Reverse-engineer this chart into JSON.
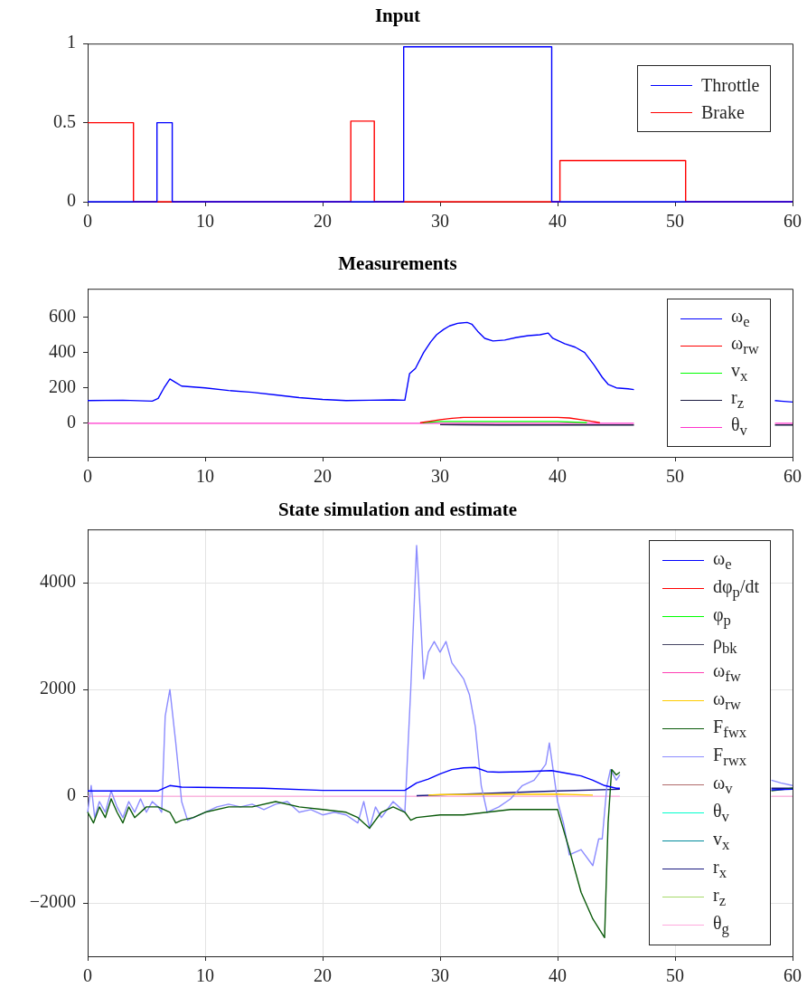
{
  "chart_data": [
    {
      "type": "step",
      "title": "Input",
      "xlim": [
        0,
        60
      ],
      "xticks": [
        0,
        10,
        20,
        30,
        40,
        50,
        60
      ],
      "ylim": [
        0,
        1
      ],
      "yticks": [
        0,
        0.5,
        1
      ],
      "legend": "top right",
      "series": [
        {
          "name": "Throttle",
          "color": "#0000ff",
          "x": [
            0,
            5.9,
            7.2,
            26.9,
            39.5,
            60
          ],
          "values": [
            0,
            0.5,
            0,
            0.98,
            0,
            0
          ]
        },
        {
          "name": "Brake",
          "color": "#ff0000",
          "x": [
            0,
            3.9,
            22.4,
            24.4,
            40.2,
            50.9,
            60
          ],
          "values": [
            0.5,
            0,
            0.51,
            0,
            0.26,
            0,
            0
          ]
        }
      ]
    },
    {
      "type": "line",
      "title": "Measurements",
      "xlim": [
        0,
        60
      ],
      "xticks": [
        0,
        10,
        20,
        30,
        40,
        50,
        60
      ],
      "ylim": [
        -190,
        760
      ],
      "yticks": [
        0,
        200,
        400,
        600
      ],
      "legend": "right",
      "series": [
        {
          "name": "ω$_{e}$",
          "color": "#0000ff",
          "x": [
            0,
            3,
            5.5,
            6,
            6.5,
            7,
            7.5,
            8,
            9,
            10,
            12,
            14,
            16,
            18,
            20,
            22,
            24,
            26,
            27,
            27.4,
            27.9,
            28.6,
            29.2,
            29.7,
            30.3,
            30.8,
            31.5,
            32.3,
            32.7,
            33.2,
            33.8,
            34.5,
            35.5,
            36.5,
            37.5,
            38.5,
            39.2,
            39.6,
            40.6,
            41.5,
            42.3,
            43.1,
            43.8,
            44.3,
            45,
            46,
            46.5,
            47,
            58.5,
            59,
            60
          ],
          "values": [
            128,
            130,
            125,
            140,
            200,
            250,
            230,
            210,
            205,
            200,
            185,
            175,
            160,
            145,
            135,
            128,
            130,
            132,
            130,
            280,
            310,
            400,
            460,
            500,
            530,
            550,
            565,
            570,
            560,
            520,
            480,
            465,
            470,
            485,
            495,
            500,
            510,
            480,
            450,
            430,
            400,
            330,
            260,
            220,
            200,
            195,
            190,
            null,
            128,
            125,
            120
          ]
        },
        {
          "name": "ω$_{rw}$",
          "color": "#ff0000",
          "x": [
            28.3,
            29,
            30,
            31,
            32,
            40,
            41,
            42,
            43,
            43.6
          ],
          "values": [
            3,
            10,
            20,
            28,
            33,
            33,
            30,
            20,
            10,
            3
          ]
        },
        {
          "name": "v$_{x}$",
          "color": "#00ff00",
          "x": [
            28.5,
            30,
            40,
            42.5
          ],
          "values": [
            3,
            10,
            10,
            3
          ]
        },
        {
          "name": "r$_{z}$",
          "color": "#1a1a40",
          "x": [
            30,
            35,
            44,
            46.5,
            47,
            58.5,
            60
          ],
          "values": [
            -8,
            -10,
            -10,
            -10,
            null,
            -10,
            -10
          ]
        },
        {
          "name": "θ$_{v}$",
          "color": "#ff33cc",
          "x": [
            0,
            46.5,
            47,
            58.5,
            60
          ],
          "values": [
            0,
            0,
            null,
            0,
            0
          ]
        }
      ]
    },
    {
      "type": "line",
      "title": "State simulation and estimate",
      "xlim": [
        0,
        60
      ],
      "xticks": [
        0,
        10,
        20,
        30,
        40,
        50,
        60
      ],
      "ylim": [
        -3000,
        5000
      ],
      "yticks": [
        {
          "value": -2000,
          "label": "−2000"
        },
        0,
        2000,
        4000
      ],
      "grid": true,
      "legend": "right",
      "series": [
        {
          "name": "ω$_{e}$",
          "color": "#0000ff",
          "x": [
            0,
            6,
            6.5,
            7,
            8,
            15,
            20,
            27,
            28,
            29,
            30,
            31,
            32,
            33,
            34,
            35,
            37,
            39.5,
            41,
            42,
            43,
            44,
            45,
            45.3,
            45.5,
            58.2,
            60
          ],
          "values": [
            100,
            100,
            150,
            200,
            170,
            150,
            110,
            110,
            250,
            320,
            420,
            500,
            530,
            540,
            460,
            450,
            460,
            480,
            420,
            380,
            300,
            200,
            150,
            150,
            null,
            120,
            130
          ]
        },
        {
          "name": "dφ$_{p}$/dt",
          "color": "#ff0000"
        },
        {
          "name": "φ$_{p}$",
          "color": "#00ff00"
        },
        {
          "name": "ρ$_{bk}$",
          "color": "#464664"
        },
        {
          "name": "ω$_{fw}$",
          "color": "#ff3fb4"
        },
        {
          "name": "ω$_{rw}$",
          "color": "#ffcc00",
          "x": [
            29,
            30,
            40,
            43
          ],
          "values": [
            20,
            30,
            40,
            20
          ]
        },
        {
          "name": "F$_{fwx}$",
          "color": "#0a5a0a",
          "x": [
            0,
            0.5,
            1,
            1.5,
            2,
            2.5,
            3,
            3.5,
            4,
            5,
            6,
            7,
            7.5,
            8,
            9,
            10,
            12,
            14,
            16,
            18,
            20,
            22,
            23,
            24,
            25,
            26,
            27,
            27.5,
            28,
            30,
            32,
            34,
            36,
            38,
            40,
            41,
            42,
            43,
            44,
            44.3,
            44.6,
            45,
            45.3,
            45.5,
            58.2,
            60
          ],
          "values": [
            -300,
            -500,
            -200,
            -400,
            -50,
            -300,
            -500,
            -200,
            -400,
            -200,
            -200,
            -300,
            -500,
            -450,
            -400,
            -300,
            -200,
            -200,
            -100,
            -200,
            -250,
            -300,
            -400,
            -600,
            -300,
            -200,
            -300,
            -450,
            -400,
            -350,
            -350,
            -300,
            -250,
            -250,
            -250,
            -1000,
            -1800,
            -2300,
            -2650,
            -500,
            500,
            400,
            450,
            null,
            100,
            150
          ]
        },
        {
          "name": "F$_{rwx}$",
          "color": "#8c8cff",
          "x": [
            0,
            0.3,
            0.6,
            1,
            1.5,
            2,
            2.5,
            3,
            3.5,
            4,
            4.5,
            5,
            5.5,
            6,
            6.3,
            6.6,
            7,
            7.5,
            8,
            8.5,
            9,
            10,
            11,
            12,
            13,
            14,
            15,
            16,
            17,
            18,
            19,
            20,
            21,
            22,
            23,
            23.5,
            24,
            24.5,
            25,
            26,
            26.5,
            27,
            27.5,
            28,
            28.3,
            28.6,
            29,
            29.5,
            30,
            30.5,
            31,
            32,
            32.5,
            33,
            33.5,
            34,
            35,
            36,
            37,
            38,
            39,
            39.3,
            40,
            40.5,
            41,
            42,
            43,
            43.5,
            43.8,
            44.2,
            44.5,
            45,
            45.3,
            45.5,
            58.2,
            59,
            60
          ],
          "values": [
            -300,
            200,
            -400,
            -100,
            -300,
            100,
            -200,
            -400,
            -100,
            -300,
            -50,
            -300,
            -100,
            -200,
            -300,
            1500,
            2000,
            1000,
            -100,
            -450,
            -400,
            -300,
            -200,
            -150,
            -200,
            -150,
            -250,
            -150,
            -100,
            -300,
            -250,
            -350,
            -300,
            -350,
            -500,
            -100,
            -600,
            -200,
            -400,
            -100,
            -200,
            -300,
            2000,
            4700,
            3500,
            2200,
            2700,
            2900,
            2700,
            2900,
            2500,
            2200,
            1900,
            1300,
            200,
            -300,
            -200,
            -50,
            200,
            300,
            600,
            1000,
            -100,
            -500,
            -1100,
            -1000,
            -1300,
            -800,
            -800,
            200,
            500,
            300,
            400,
            null,
            300,
            250,
            200
          ]
        },
        {
          "name": "ω$_{v}$",
          "color": "#b06a6a"
        },
        {
          "name": "θ$_{v}$",
          "color": "#00ffcc"
        },
        {
          "name": "v$_{x}$",
          "color": "#008b9b"
        },
        {
          "name": "r$_{x}$",
          "color": "#1a1a80",
          "x": [
            28,
            35,
            40,
            45.3,
            45.5,
            58.2,
            60
          ],
          "values": [
            10,
            60,
            100,
            130,
            null,
            150,
            150
          ]
        },
        {
          "name": "r$_{z}$",
          "color": "#a6d96a"
        },
        {
          "name": "θ$_{g}$",
          "color": "#ffaadd",
          "x": [
            0,
            45.3,
            45.5,
            58.2,
            60
          ],
          "values": [
            0,
            0,
            null,
            0,
            0
          ]
        }
      ]
    }
  ]
}
